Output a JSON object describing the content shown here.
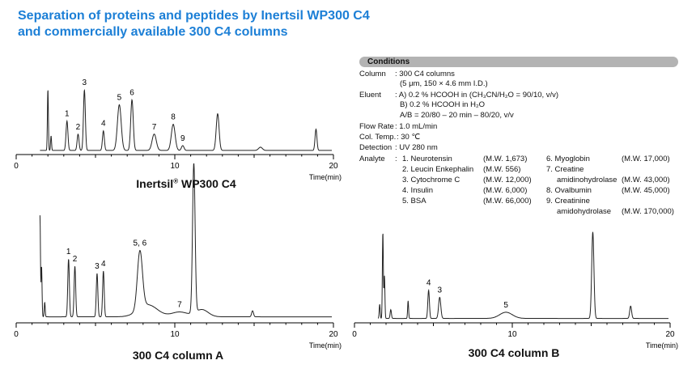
{
  "title": {
    "line1": "Separation of proteins and peptides by Inertsil WP300 C4",
    "line2": "and commercially available 300 C4 columns"
  },
  "colors": {
    "title": "#1c7fd6",
    "trace": "#222222",
    "header_bg": "#b3b3b3"
  },
  "conditions": {
    "header": "Conditions",
    "column_label": "Column",
    "column_value1": ": 300 C4 columns",
    "column_value2": "(5 μm, 150 × 4.6 mm I.D.)",
    "eluent_label": "Eluent",
    "eluent_a": ": A) 0.2 % HCOOH in (CH₃CN/H₂O = 90/10, v/v)",
    "eluent_b": "B) 0.2 % HCOOH in H₂O",
    "eluent_grad": "A/B = 20/80 – 20 min – 80/20, v/v",
    "flow_label": "Flow Rate",
    "flow_value": ": 1.0 mL/min",
    "temp_label": "Col. Temp.",
    "temp_value": ": 30 ℃",
    "detection_label": "Detection",
    "detection_value": ": UV 280 nm",
    "analyte_label": "Analyte",
    "analyte_colon": ":",
    "analytes_left": [
      {
        "name": "1. Neurotensin",
        "mw": "(M.W. 1,673)"
      },
      {
        "name": "2. Leucin Enkephalin",
        "mw": "(M.W. 556)"
      },
      {
        "name": "3. Cytochrome C",
        "mw": "(M.W. 12,000)"
      },
      {
        "name": "4. Insulin",
        "mw": "(M.W. 6,000)"
      },
      {
        "name": "5. BSA",
        "mw": "(M.W. 66,000)"
      }
    ],
    "analytes_right": [
      {
        "name": "6. Myoglobin",
        "mw": "(M.W. 17,000)"
      },
      {
        "name": "7. Creatine",
        "mw": ""
      },
      {
        "name": "amidinohydrolase",
        "mw": "(M.W. 43,000)"
      },
      {
        "name": "8. Ovalbumin",
        "mw": "(M.W. 45,000)"
      },
      {
        "name": "9. Creatinine",
        "mw": ""
      },
      {
        "name": "amidohydrolase",
        "mw": "(M.W. 170,000)"
      }
    ]
  },
  "chart_data": [
    {
      "type": "line",
      "title": "Inertsil",
      "title_reg": "®",
      "title_rest": " WP300 C4",
      "xlabel": "Time(min)",
      "xlim": [
        0,
        20
      ],
      "ylim": [
        0,
        100
      ],
      "ticks": [
        "0",
        "10",
        "20"
      ],
      "baseline": 5,
      "peaks": [
        {
          "t": 2.0,
          "h": 75,
          "w": 0.03,
          "label": ""
        },
        {
          "t": 2.2,
          "h": 18,
          "w": 0.03,
          "label": ""
        },
        {
          "t": 3.2,
          "h": 36,
          "w": 0.06,
          "label": "1"
        },
        {
          "t": 3.9,
          "h": 20,
          "w": 0.06,
          "label": "2"
        },
        {
          "t": 4.3,
          "h": 74,
          "w": 0.06,
          "label": "3"
        },
        {
          "t": 5.5,
          "h": 24,
          "w": 0.06,
          "label": "4"
        },
        {
          "t": 6.5,
          "h": 56,
          "w": 0.12,
          "label": "5"
        },
        {
          "t": 7.3,
          "h": 62,
          "w": 0.08,
          "label": "6"
        },
        {
          "t": 8.7,
          "h": 20,
          "w": 0.13,
          "label": "7"
        },
        {
          "t": 9.9,
          "h": 32,
          "w": 0.12,
          "label": "8"
        },
        {
          "t": 10.5,
          "h": 6,
          "w": 0.08,
          "label": "9"
        },
        {
          "t": 12.7,
          "h": 45,
          "w": 0.09,
          "label": ""
        },
        {
          "t": 15.4,
          "h": 4,
          "w": 0.12,
          "label": ""
        },
        {
          "t": 18.9,
          "h": 26,
          "w": 0.06,
          "label": ""
        }
      ]
    },
    {
      "type": "line",
      "title": "300 C4 column A",
      "xlabel": "Time(min)",
      "xlim": [
        0,
        20
      ],
      "ylim": [
        0,
        100
      ],
      "ticks": [
        "0",
        "10",
        "20"
      ],
      "baseline": 5,
      "peaks": [
        {
          "t": 1.5,
          "h": 84,
          "w": 0.03,
          "label": ""
        },
        {
          "t": 1.6,
          "h": 42,
          "w": 0.03,
          "label": ""
        },
        {
          "t": 1.8,
          "h": 12,
          "w": 0.03,
          "label": ""
        },
        {
          "t": 3.3,
          "h": 48,
          "w": 0.05,
          "label": "1"
        },
        {
          "t": 3.7,
          "h": 42,
          "w": 0.05,
          "label": "2"
        },
        {
          "t": 5.1,
          "h": 36,
          "w": 0.05,
          "label": "3"
        },
        {
          "t": 5.5,
          "h": 38,
          "w": 0.05,
          "label": "4"
        },
        {
          "t": 7.8,
          "h": 48,
          "w": 0.16,
          "label": "5, 6"
        },
        {
          "t": 8.3,
          "h": 10,
          "w": 0.6,
          "label": ""
        },
        {
          "t": 10.3,
          "h": 4,
          "w": 0.5,
          "label": "7"
        },
        {
          "t": 11.2,
          "h": 124,
          "w": 0.08,
          "label": ""
        },
        {
          "t": 11.7,
          "h": 6,
          "w": 0.4,
          "label": ""
        },
        {
          "t": 14.9,
          "h": 5,
          "w": 0.06,
          "label": ""
        }
      ]
    },
    {
      "type": "line",
      "title": "300 C4 column B",
      "xlabel": "Time(min)",
      "xlim": [
        0,
        20
      ],
      "ylim": [
        0,
        100
      ],
      "ticks": [
        "0",
        "10",
        "20"
      ],
      "baseline": 5,
      "peaks": [
        {
          "t": 1.6,
          "h": 16,
          "w": 0.03,
          "label": ""
        },
        {
          "t": 1.8,
          "h": 98,
          "w": 0.03,
          "label": ""
        },
        {
          "t": 1.9,
          "h": 48,
          "w": 0.03,
          "label": ""
        },
        {
          "t": 2.3,
          "h": 10,
          "w": 0.04,
          "label": ""
        },
        {
          "t": 3.4,
          "h": 20,
          "w": 0.03,
          "label": ""
        },
        {
          "t": 4.7,
          "h": 32,
          "w": 0.05,
          "label": "4"
        },
        {
          "t": 5.4,
          "h": 24,
          "w": 0.07,
          "label": "3"
        },
        {
          "t": 9.6,
          "h": 7,
          "w": 0.4,
          "label": "5"
        },
        {
          "t": 15.1,
          "h": 98,
          "w": 0.07,
          "label": ""
        },
        {
          "t": 17.5,
          "h": 14,
          "w": 0.06,
          "label": ""
        }
      ]
    }
  ]
}
